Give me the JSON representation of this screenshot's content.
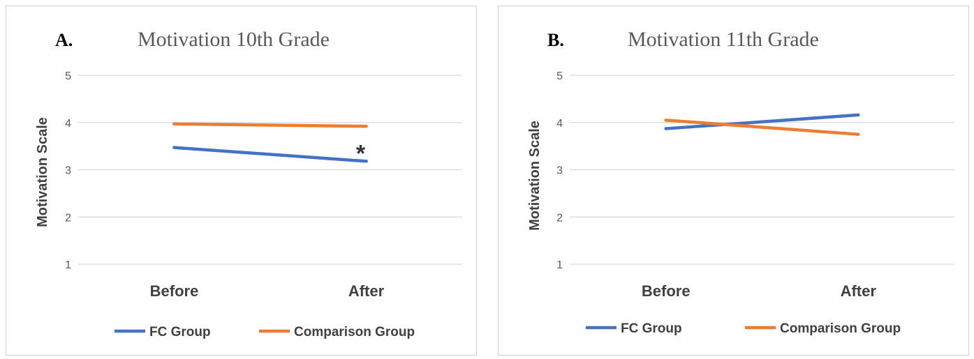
{
  "chart_data": [
    {
      "type": "line",
      "panel_label": "A.",
      "title": "Motivation 10th Grade",
      "xlabel": "",
      "ylabel": "Motivation Scale",
      "categories": [
        "Before",
        "After"
      ],
      "ylim": [
        1,
        5
      ],
      "yticks": [
        "1",
        "2",
        "3",
        "4",
        "5"
      ],
      "grid": true,
      "legend_position": "bottom",
      "series": [
        {
          "name": "FC Group",
          "color": "#4472C4",
          "values": [
            3.47,
            3.18
          ]
        },
        {
          "name": "Comparison Group",
          "color": "#ED7D31",
          "values": [
            3.97,
            3.92
          ]
        }
      ],
      "annotations": [
        {
          "text": "*",
          "category": "After",
          "y": 3.5
        }
      ]
    },
    {
      "type": "line",
      "panel_label": "B.",
      "title": "Motivation 11th Grade",
      "xlabel": "",
      "ylabel": "Motivation Scale",
      "categories": [
        "Before",
        "After"
      ],
      "ylim": [
        1,
        5
      ],
      "yticks": [
        "1",
        "2",
        "3",
        "4",
        "5"
      ],
      "grid": true,
      "legend_position": "bottom",
      "series": [
        {
          "name": "FC Group",
          "color": "#4472C4",
          "values": [
            3.87,
            4.16
          ]
        },
        {
          "name": "Comparison Group",
          "color": "#ED7D31",
          "values": [
            4.05,
            3.75
          ]
        }
      ],
      "annotations": []
    }
  ]
}
